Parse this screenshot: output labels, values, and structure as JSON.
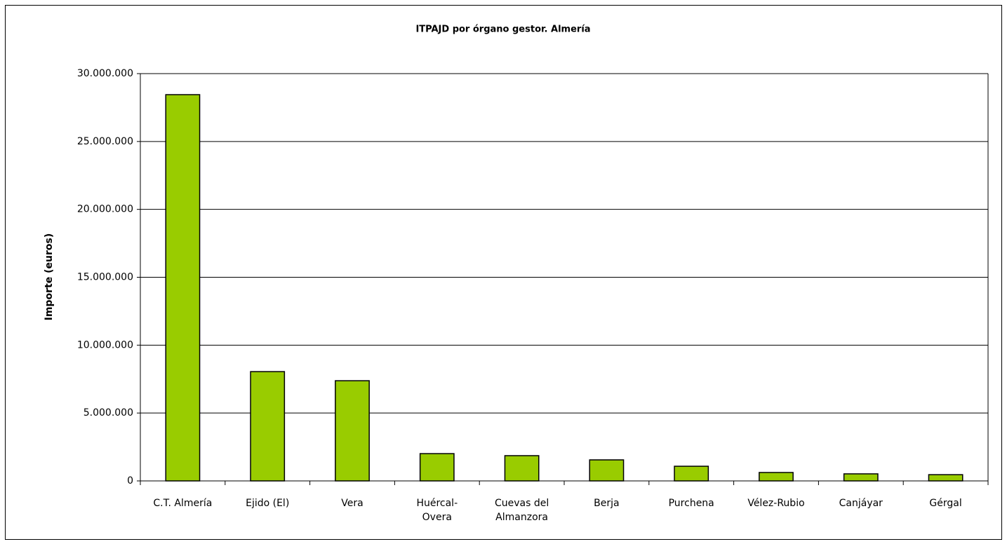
{
  "chart_data": {
    "type": "bar",
    "title": "ITPAJD por órgano gestor. Almería",
    "ylabel": "Importe (euros)",
    "categories": [
      "C.T. Almería",
      "Ejido (El)",
      "Vera",
      "Huércal-Overa",
      "Cuevas del Almanzora",
      "Berja",
      "Purchena",
      "Vélez-Rubio",
      "Canjáyar",
      "Gérgal"
    ],
    "values": [
      28450000,
      8050000,
      7380000,
      2010000,
      1860000,
      1550000,
      1080000,
      620000,
      520000,
      460000
    ],
    "color": "#99cc00",
    "ylim": [
      0,
      30000000
    ],
    "yticks": [
      0,
      {
        "value": 5000000,
        "label": "5.000.000"
      },
      {
        "value": 10000000,
        "label": "10.000.000"
      },
      {
        "value": 15000000,
        "label": "15.000.000"
      },
      {
        "value": 20000000,
        "label": "20.000.000"
      },
      {
        "value": 25000000,
        "label": "25.000.000"
      },
      {
        "value": 30000000,
        "label": "30.000.000"
      }
    ],
    "grid": true
  }
}
